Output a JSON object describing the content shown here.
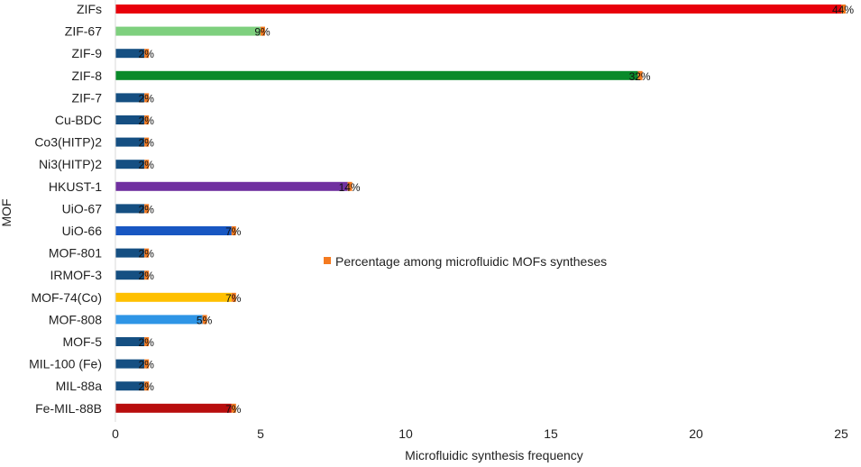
{
  "chart_data": {
    "type": "bar",
    "orientation": "horizontal",
    "title": "",
    "xlabel": "Microfluidic synthesis frequency",
    "ylabel": "MOF",
    "xlim": [
      0,
      25
    ],
    "xticks": [
      0,
      5,
      10,
      15,
      20,
      25
    ],
    "grid": false,
    "categories": [
      "ZIFs",
      "ZIF-67",
      "ZIF-9",
      "ZIF-8",
      "ZIF-7",
      "Cu-BDC",
      "Co3(HITP)2",
      "Ni3(HITP)2",
      "HKUST-1",
      "UiO-67",
      "UiO-66",
      "MOF-801",
      "IRMOF-3",
      "MOF-74(Co)",
      "MOF-808",
      "MOF-5",
      "MIL-100 (Fe)",
      "MIL-88a",
      "Fe-MIL-88B"
    ],
    "values": [
      25,
      5,
      1,
      18,
      1,
      1,
      1,
      1,
      8,
      1,
      4,
      1,
      1,
      4,
      3,
      1,
      1,
      1,
      4
    ],
    "percent_labels": [
      "44%",
      "9%",
      "2%",
      "32%",
      "2%",
      "2%",
      "2%",
      "2%",
      "14%",
      "2%",
      "7%",
      "2%",
      "2%",
      "7%",
      "5%",
      "2%",
      "2%",
      "2%",
      "7%"
    ],
    "bar_colors": [
      "#e8000b",
      "#7ed07e",
      "#154f82",
      "#0a8a2a",
      "#154f82",
      "#154f82",
      "#154f82",
      "#154f82",
      "#7030a0",
      "#154f82",
      "#1857c2",
      "#154f82",
      "#154f82",
      "#ffc000",
      "#2e95e6",
      "#154f82",
      "#154f82",
      "#154f82",
      "#b80d0d"
    ],
    "legend": {
      "entries": [
        {
          "label": "Percentage among microfluidic MOFs syntheses",
          "color": "#f47a20"
        }
      ],
      "placement": "center-right"
    }
  }
}
